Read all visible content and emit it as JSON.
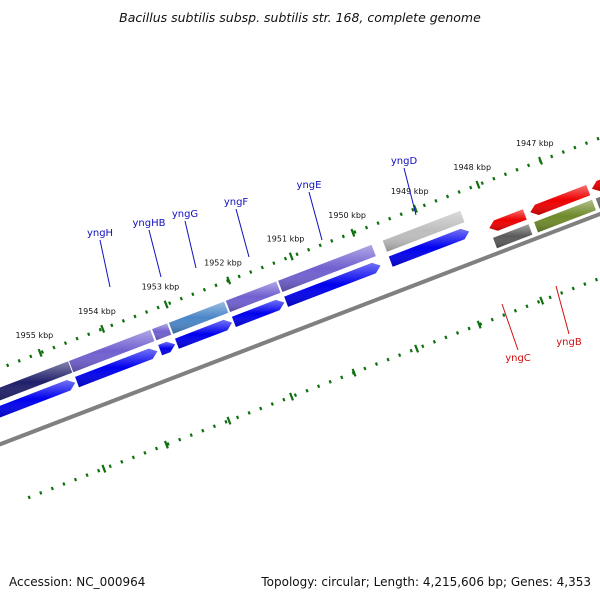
{
  "title": "Bacillus subtilis subsp. subtilis str. 168, complete genome",
  "footer": {
    "accession": "Accession: NC_000964",
    "summary": "Topology: circular; Length: 4,215,606 bp; Genes: 4,353"
  },
  "colors": {
    "plus_cds": "#0000ee",
    "minus_cds": "#ee0000",
    "plus_gene": "#7060d0",
    "minus_gene": "#6e8a2a",
    "tick": "#107010",
    "backbone": "#808080",
    "plus_label": "#1010c0",
    "minus_label": "#d01010"
  },
  "scale": {
    "ticks": [
      {
        "label": "1955 kbp"
      },
      {
        "label": "1954 kbp"
      },
      {
        "label": "1953 kbp"
      },
      {
        "label": "1952 kbp"
      },
      {
        "label": "1951 kbp"
      },
      {
        "label": "1950 kbp"
      },
      {
        "label": "1949 kbp"
      },
      {
        "label": "1948 kbp"
      },
      {
        "label": "1947 kbp"
      }
    ]
  },
  "genes": [
    {
      "name": "yngH",
      "strand": "plus"
    },
    {
      "name": "yngHB",
      "strand": "plus"
    },
    {
      "name": "yngG",
      "strand": "plus"
    },
    {
      "name": "yngF",
      "strand": "plus"
    },
    {
      "name": "yngE",
      "strand": "plus"
    },
    {
      "name": "yngD",
      "strand": "plus"
    },
    {
      "name": "yngC",
      "strand": "minus"
    },
    {
      "name": "yngB",
      "strand": "minus"
    }
  ]
}
